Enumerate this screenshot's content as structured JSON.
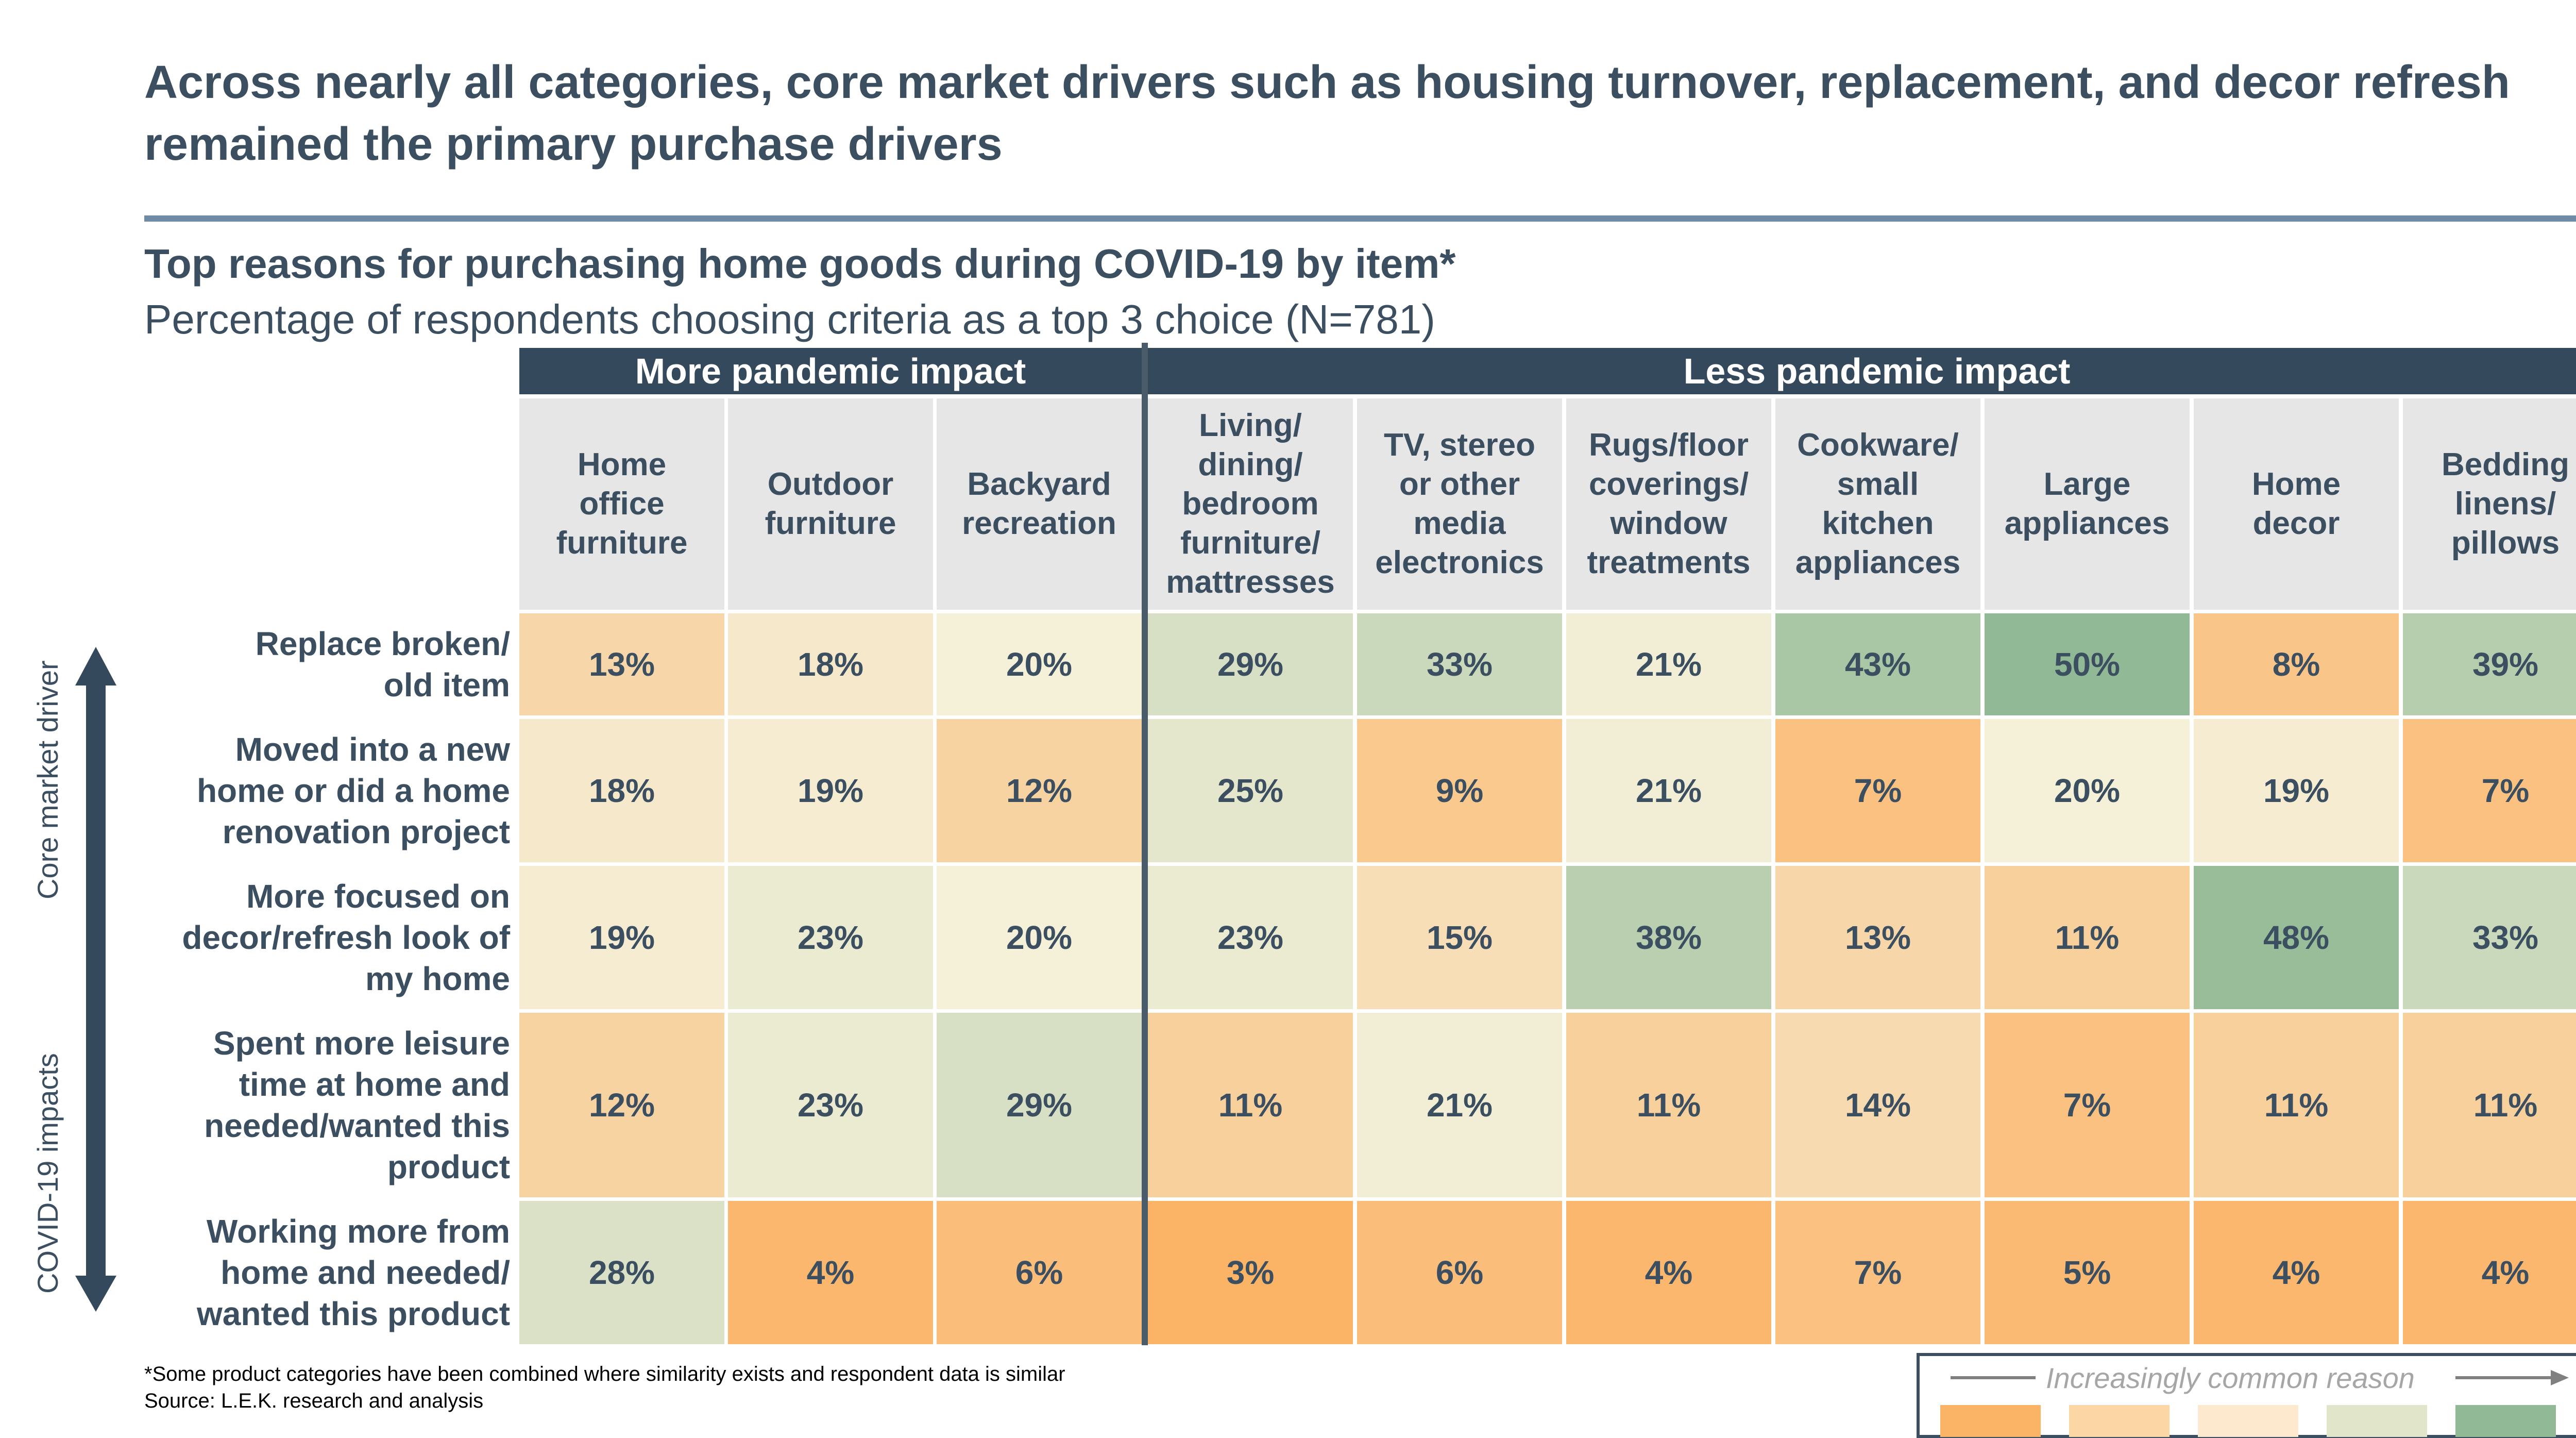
{
  "headline": "Across nearly all categories, core market drivers such as housing turnover, replacement, and decor refresh remained the primary purchase drivers",
  "subtitle": "Top reasons for purchasing home goods during COVID-19 by item*",
  "subsubtitle": "Percentage of respondents choosing criteria as a top 3 choice (N=781)",
  "groups": [
    "More pandemic impact",
    "Less pandemic impact"
  ],
  "side_labels": {
    "top": "Core market driver",
    "bottom": "COVID-19 impacts"
  },
  "footnote": "*Some product categories have been combined where similarity exists and respondent data is similar",
  "source": "Source: L.E.K. research and analysis",
  "legend": {
    "label": "Increasingly common reason",
    "colors": [
      "#fbb366",
      "#fcd6a4",
      "#fde9cd",
      "#e1e5c9",
      "#92b995"
    ]
  },
  "chart_data": {
    "type": "heatmap",
    "title": "Top reasons for purchasing home goods during COVID-19 by item*",
    "categories": [
      "Home\noffice\nfurniture",
      "Outdoor\nfurniture",
      "Backyard\nrecreation",
      "Living/\ndining/\nbedroom\nfurniture/\nmattresses",
      "TV, stereo\nor other\nmedia\nelectronics",
      "Rugs/floor\ncoverings/\nwindow\ntreatments",
      "Cookware/\nsmall\nkitchen\nappliances",
      "Large\nappliances",
      "Home\ndecor",
      "Bedding\nlinens/\npillows"
    ],
    "rows": [
      "Replace broken/\nold item",
      "Moved into a new\nhome or did a home\nrenovation project",
      "More focused on\ndecor/refresh look of\nmy home",
      "Spent more leisure\ntime at home and\nneeded/wanted this\nproduct",
      "Working more from\nhome and needed/\nwanted this product"
    ],
    "values": [
      [
        13,
        18,
        20,
        29,
        33,
        21,
        43,
        50,
        8,
        39
      ],
      [
        18,
        19,
        12,
        25,
        9,
        21,
        7,
        20,
        19,
        7
      ],
      [
        19,
        23,
        20,
        23,
        15,
        38,
        13,
        11,
        48,
        33
      ],
      [
        12,
        23,
        29,
        11,
        21,
        11,
        14,
        7,
        11,
        11
      ],
      [
        28,
        4,
        6,
        3,
        6,
        4,
        7,
        5,
        4,
        4
      ]
    ],
    "value_labels": [
      [
        "13%",
        "18%",
        "20%",
        "29%",
        "33%",
        "21%",
        "43%",
        "50%",
        "8%",
        "39%"
      ],
      [
        "18%",
        "19%",
        "12%",
        "25%",
        "9%",
        "21%",
        "7%",
        "20%",
        "19%",
        "7%"
      ],
      [
        "19%",
        "23%",
        "20%",
        "23%",
        "15%",
        "38%",
        "13%",
        "11%",
        "48%",
        "33%"
      ],
      [
        "12%",
        "23%",
        "29%",
        "11%",
        "21%",
        "11%",
        "14%",
        "7%",
        "11%",
        "11%"
      ],
      [
        "28%",
        "4%",
        "6%",
        "3%",
        "6%",
        "4%",
        "7%",
        "5%",
        "4%",
        "4%"
      ]
    ],
    "group_spans": [
      3,
      7
    ],
    "color_scale": {
      "low": "#fbb366",
      "mid": "#f5f0d8",
      "high": "#92b995"
    }
  }
}
